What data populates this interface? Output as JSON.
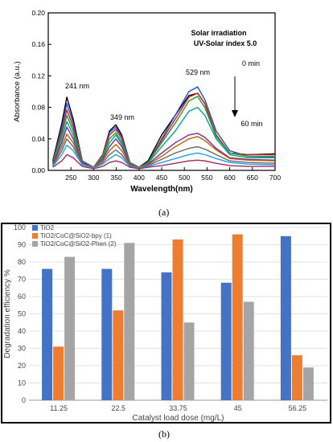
{
  "chart_data": [
    {
      "type": "line",
      "xlabel": "Wavelength(nm)",
      "ylabel": "Absorbance (a.u.)",
      "xlim": [
        200,
        700
      ],
      "ylim": [
        0,
        0.2
      ],
      "x_ticks": [
        "250",
        "300",
        "350",
        "400",
        "450",
        "500",
        "550",
        "600",
        "650",
        "700"
      ],
      "y_ticks": [
        "0.00",
        "0.04",
        "0.08",
        "0.12",
        "0.16",
        "0.20"
      ],
      "annotations": {
        "conditions": [
          "Solar irradiation",
          "UV-Solar index 5.0"
        ],
        "time_start": "0 min",
        "time_end": "60 min",
        "peaks": [
          {
            "label": "241 nm",
            "x": 241,
            "y": 0.097
          },
          {
            "label": "349 nm",
            "x": 349,
            "y": 0.059
          },
          {
            "label": "529 nm",
            "x": 529,
            "y": 0.108
          }
        ]
      },
      "series_colors": [
        "#000000",
        "#1e4fd8",
        "#d81e1e",
        "#2a9a2a",
        "#00a0a0",
        "#7a2aa0",
        "#c06000",
        "#666666",
        "#1aa0ff",
        "#a02a5a"
      ],
      "series": [
        {
          "x": [
            210,
            230,
            241,
            255,
            275,
            300,
            320,
            335,
            349,
            362,
            380,
            400,
            420,
            450,
            480,
            510,
            529,
            545,
            570,
            600,
            640,
            700
          ],
          "y": [
            0.012,
            0.06,
            0.093,
            0.065,
            0.012,
            0.004,
            0.02,
            0.05,
            0.058,
            0.045,
            0.01,
            0.004,
            0.012,
            0.045,
            0.07,
            0.095,
            0.098,
            0.085,
            0.045,
            0.022,
            0.02,
            0.021
          ]
        },
        {
          "x": [
            210,
            230,
            241,
            255,
            275,
            300,
            320,
            335,
            349,
            362,
            380,
            400,
            420,
            450,
            480,
            510,
            529,
            545,
            570,
            600,
            640,
            700
          ],
          "y": [
            0.01,
            0.055,
            0.085,
            0.06,
            0.012,
            0.004,
            0.02,
            0.048,
            0.055,
            0.043,
            0.01,
            0.004,
            0.01,
            0.04,
            0.07,
            0.1,
            0.106,
            0.09,
            0.05,
            0.025,
            0.018,
            0.017
          ]
        },
        {
          "x": [
            210,
            230,
            241,
            255,
            275,
            300,
            320,
            335,
            349,
            362,
            380,
            400,
            420,
            450,
            480,
            510,
            529,
            545,
            570,
            600,
            640,
            700
          ],
          "y": [
            0.01,
            0.05,
            0.077,
            0.055,
            0.012,
            0.004,
            0.02,
            0.045,
            0.052,
            0.04,
            0.01,
            0.004,
            0.01,
            0.038,
            0.065,
            0.093,
            0.098,
            0.085,
            0.045,
            0.022,
            0.02,
            0.02
          ]
        },
        {
          "x": [
            210,
            230,
            241,
            255,
            275,
            300,
            320,
            335,
            349,
            362,
            380,
            400,
            420,
            450,
            480,
            510,
            529,
            545,
            570,
            600,
            640,
            700
          ],
          "y": [
            0.01,
            0.045,
            0.07,
            0.05,
            0.012,
            0.004,
            0.018,
            0.04,
            0.048,
            0.036,
            0.01,
            0.004,
            0.01,
            0.035,
            0.06,
            0.088,
            0.094,
            0.08,
            0.043,
            0.022,
            0.018,
            0.018
          ]
        },
        {
          "x": [
            210,
            230,
            241,
            255,
            275,
            300,
            320,
            335,
            349,
            362,
            380,
            400,
            420,
            450,
            480,
            510,
            529,
            545,
            570,
            600,
            640,
            700
          ],
          "y": [
            0.008,
            0.04,
            0.062,
            0.045,
            0.01,
            0.004,
            0.016,
            0.035,
            0.045,
            0.033,
            0.009,
            0.004,
            0.009,
            0.03,
            0.05,
            0.075,
            0.08,
            0.07,
            0.04,
            0.02,
            0.016,
            0.016
          ]
        },
        {
          "x": [
            210,
            230,
            241,
            255,
            275,
            300,
            320,
            335,
            349,
            362,
            380,
            400,
            420,
            450,
            480,
            510,
            529,
            545,
            570,
            600,
            640,
            700
          ],
          "y": [
            0.008,
            0.035,
            0.055,
            0.04,
            0.01,
            0.004,
            0.014,
            0.03,
            0.04,
            0.03,
            0.008,
            0.004,
            0.008,
            0.022,
            0.035,
            0.045,
            0.047,
            0.042,
            0.028,
            0.016,
            0.014,
            0.013
          ]
        },
        {
          "x": [
            210,
            230,
            241,
            255,
            275,
            300,
            320,
            335,
            349,
            362,
            380,
            400,
            420,
            450,
            480,
            510,
            529,
            545,
            570,
            600,
            640,
            700
          ],
          "y": [
            0.006,
            0.03,
            0.046,
            0.035,
            0.008,
            0.004,
            0.012,
            0.025,
            0.033,
            0.025,
            0.007,
            0.004,
            0.007,
            0.018,
            0.03,
            0.04,
            0.043,
            0.038,
            0.026,
            0.015,
            0.013,
            0.012
          ]
        },
        {
          "x": [
            210,
            230,
            241,
            255,
            275,
            300,
            320,
            335,
            349,
            362,
            380,
            400,
            420,
            450,
            480,
            510,
            529,
            545,
            570,
            600,
            640,
            700
          ],
          "y": [
            0.006,
            0.025,
            0.04,
            0.03,
            0.008,
            0.003,
            0.01,
            0.02,
            0.026,
            0.02,
            0.006,
            0.003,
            0.006,
            0.014,
            0.022,
            0.028,
            0.03,
            0.027,
            0.02,
            0.012,
            0.01,
            0.009
          ]
        },
        {
          "x": [
            210,
            230,
            241,
            255,
            275,
            300,
            320,
            335,
            349,
            362,
            380,
            400,
            420,
            450,
            480,
            510,
            529,
            545,
            570,
            600,
            640,
            700
          ],
          "y": [
            0.005,
            0.02,
            0.032,
            0.025,
            0.007,
            0.003,
            0.008,
            0.015,
            0.02,
            0.016,
            0.005,
            0.003,
            0.005,
            0.01,
            0.015,
            0.02,
            0.022,
            0.02,
            0.015,
            0.01,
            0.008,
            0.007
          ]
        },
        {
          "x": [
            210,
            230,
            241,
            255,
            275,
            300,
            320,
            335,
            349,
            362,
            380,
            400,
            420,
            450,
            480,
            510,
            529,
            545,
            570,
            600,
            640,
            700
          ],
          "y": [
            0.004,
            0.012,
            0.02,
            0.016,
            0.005,
            0.002,
            0.005,
            0.01,
            0.012,
            0.01,
            0.004,
            0.002,
            0.004,
            0.006,
            0.009,
            0.012,
            0.013,
            0.012,
            0.009,
            0.006,
            0.005,
            0.005
          ]
        }
      ]
    },
    {
      "type": "bar",
      "xlabel": "Catalyst load dose (mg/L)",
      "ylabel": "Degradation efficiency %",
      "ylim": [
        0,
        100
      ],
      "y_ticks": [
        "0",
        "10",
        "20",
        "30",
        "40",
        "50",
        "60",
        "70",
        "80",
        "90",
        "100"
      ],
      "categories": [
        "11.25",
        "22.5",
        "33.75",
        "45",
        "56.25"
      ],
      "legend_position": "top-left",
      "series": [
        {
          "name": "TiO2",
          "color": "#4472c4",
          "values": [
            76,
            76,
            74,
            68,
            95
          ]
        },
        {
          "name": "TiO2/CoC@SiO2-bpy (1)",
          "color": "#ed7d31",
          "values": [
            31,
            52,
            93,
            96,
            26
          ]
        },
        {
          "name": "TiO2/CoC@SiO2-Phen (2)",
          "color": "#a5a5a5",
          "values": [
            83,
            91,
            45,
            57,
            19
          ]
        }
      ]
    }
  ],
  "captions": {
    "a": "(a)",
    "b": "(b)"
  }
}
